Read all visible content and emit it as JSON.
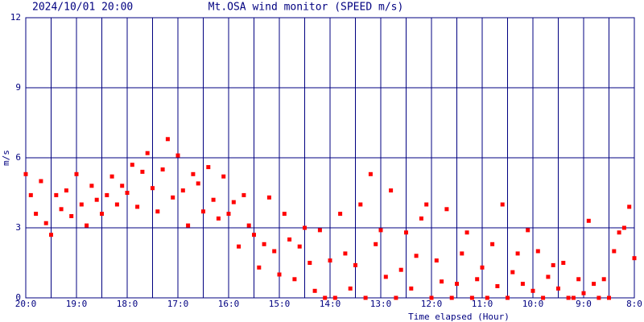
{
  "chart_data": {
    "type": "scatter",
    "timestamp": "2024/10/01 20:00",
    "title": "Mt.OSA wind monitor (SPEED m/s)",
    "ylabel": "m/s",
    "xlabel": "Time elapsed (Hour)",
    "xlim": [
      0,
      12
    ],
    "ylim": [
      0,
      12
    ],
    "yticks": [
      0,
      3,
      6,
      9,
      12
    ],
    "xticks": [
      {
        "value": 0,
        "label": "20:0"
      },
      {
        "value": 1,
        "label": "19:0"
      },
      {
        "value": 2,
        "label": "18:0"
      },
      {
        "value": 3,
        "label": "17:0"
      },
      {
        "value": 4,
        "label": "16:0"
      },
      {
        "value": 5,
        "label": "15:0"
      },
      {
        "value": 6,
        "label": "14:0"
      },
      {
        "value": 7,
        "label": "13:0"
      },
      {
        "value": 8,
        "label": "12:0"
      },
      {
        "value": 9,
        "label": "11:0"
      },
      {
        "value": 10,
        "label": "10:0"
      },
      {
        "value": 11,
        "label": "9:0"
      },
      {
        "value": 12,
        "label": "8:0"
      }
    ],
    "x_grid": [
      0.5,
      1.5,
      2.5,
      3.5,
      4.5,
      5.5,
      6.5,
      7.5,
      8.5,
      9.5,
      10.5,
      11.5
    ],
    "grid": true,
    "grid_color": "#000080",
    "color": "#ff0000",
    "x": [
      0,
      0.1,
      0.2,
      0.3,
      0.4,
      0.5,
      0.6,
      0.7,
      0.8,
      0.9,
      1,
      1.1,
      1.2,
      1.3,
      1.4,
      1.5,
      1.6,
      1.7,
      1.8,
      1.9,
      2,
      2.1,
      2.2,
      2.3,
      2.4,
      2.5,
      2.6,
      2.7,
      2.8,
      2.9,
      3,
      3.1,
      3.2,
      3.3,
      3.4,
      3.5,
      3.6,
      3.7,
      3.8,
      3.9,
      4,
      4.1,
      4.2,
      4.3,
      4.4,
      4.5,
      4.6,
      4.7,
      4.8,
      4.9,
      5,
      5.1,
      5.2,
      5.3,
      5.4,
      5.5,
      5.6,
      5.7,
      5.8,
      5.9,
      6,
      6.1,
      6.2,
      6.3,
      6.4,
      6.5,
      6.6,
      6.7,
      6.8,
      6.9,
      7,
      7.1,
      7.2,
      7.3,
      7.4,
      7.5,
      7.6,
      7.7,
      7.8,
      7.9,
      8,
      8.1,
      8.2,
      8.3,
      8.4,
      8.5,
      8.6,
      8.7,
      8.8,
      8.9,
      9,
      9.1,
      9.2,
      9.3,
      9.4,
      9.5,
      9.6,
      9.7,
      9.8,
      9.9,
      10,
      10.1,
      10.2,
      10.3,
      10.4,
      10.5,
      10.6,
      10.7,
      10.8,
      10.9,
      11,
      11.1,
      11.2,
      11.3,
      11.4,
      11.5,
      11.6,
      11.7,
      11.8,
      11.9,
      12
    ],
    "values": [
      5.3,
      4.4,
      3.6,
      5.0,
      3.2,
      2.7,
      4.4,
      3.8,
      4.6,
      3.5,
      5.3,
      4.0,
      3.1,
      4.8,
      4.2,
      3.6,
      4.4,
      5.2,
      4.0,
      4.8,
      4.5,
      5.7,
      3.9,
      5.4,
      6.2,
      4.7,
      3.7,
      5.5,
      6.8,
      4.3,
      6.1,
      4.6,
      3.1,
      5.3,
      4.9,
      3.7,
      5.6,
      4.2,
      3.4,
      5.2,
      3.6,
      4.1,
      2.2,
      4.4,
      3.1,
      2.7,
      1.3,
      2.3,
      4.3,
      2.0,
      1.0,
      3.6,
      2.5,
      0.8,
      2.2,
      3.0,
      1.5,
      0.3,
      2.9,
      0.0,
      1.6,
      0.0,
      3.6,
      1.9,
      0.4,
      1.4,
      4.0,
      0.0,
      5.3,
      2.3,
      2.9,
      0.9,
      4.6,
      0.0,
      1.2,
      2.8,
      0.4,
      1.8,
      3.4,
      4.0,
      0.0,
      1.6,
      0.7,
      3.8,
      0.0,
      0.6,
      1.9,
      2.8,
      0.0,
      0.8,
      1.3,
      0.0,
      2.3,
      0.5,
      4.0,
      0.0,
      1.1,
      1.9,
      0.6,
      2.9,
      0.3,
      2.0,
      0.0,
      0.9,
      1.4,
      0.4,
      1.5,
      0.0,
      0.0,
      0.8,
      0.2,
      3.3,
      0.6,
      0.0,
      0.8,
      0.0,
      2.0,
      2.8,
      3.0,
      3.9,
      1.7
    ]
  }
}
